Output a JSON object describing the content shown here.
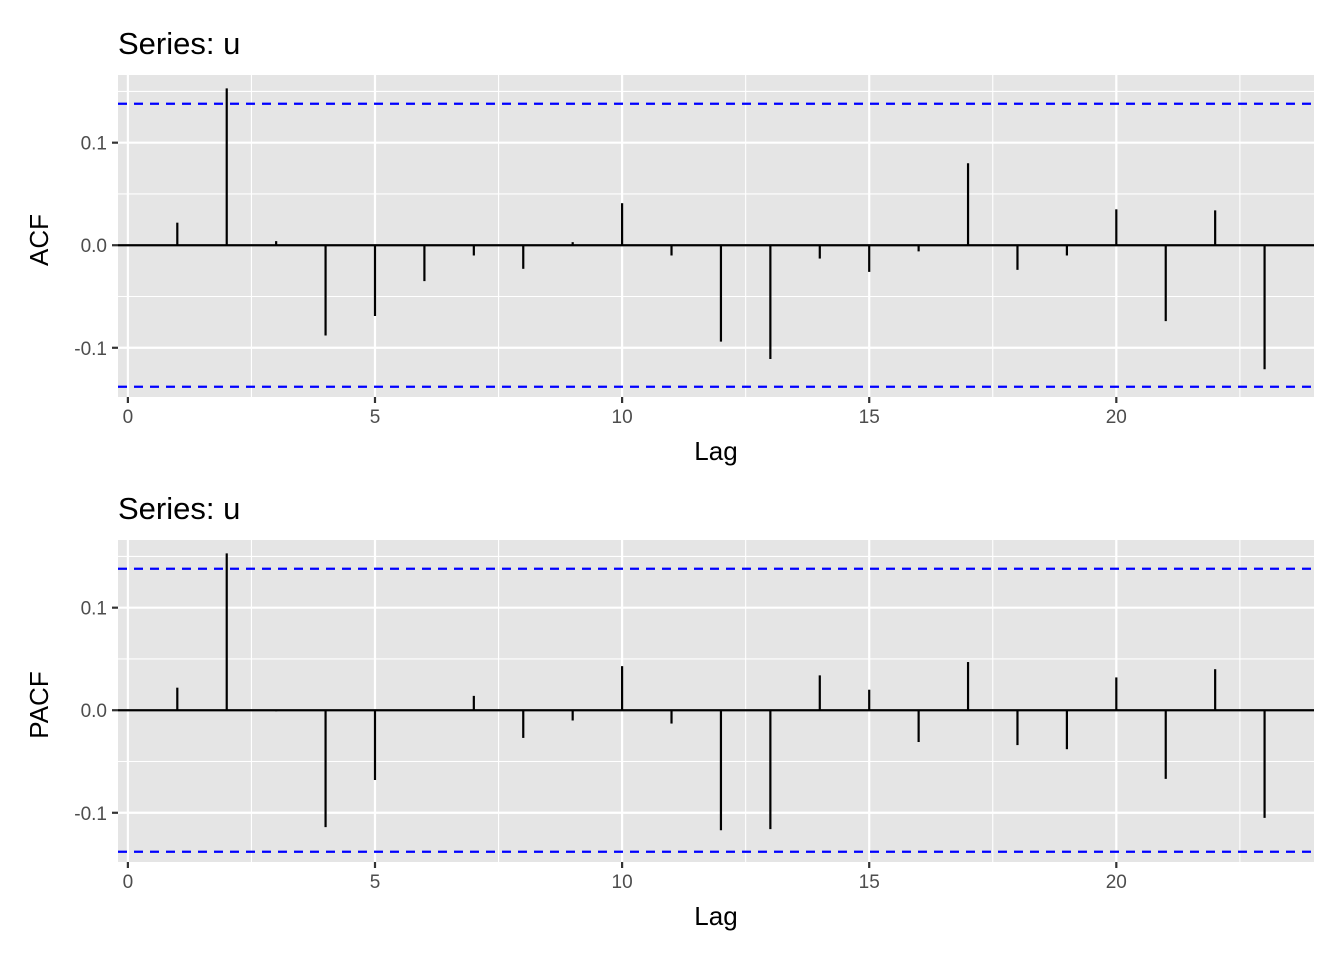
{
  "chart_data": [
    {
      "type": "bar",
      "title": "Series: u",
      "xlabel": "Lag",
      "ylabel": "ACF",
      "xlim": [
        -0.2,
        24
      ],
      "ylim": [
        -0.148,
        0.166
      ],
      "x_ticks": [
        "0",
        "5",
        "10",
        "15",
        "20"
      ],
      "y_ticks": [
        "-0.1",
        "0.0",
        "0.1"
      ],
      "confidence_bounds": [
        -0.138,
        0.138
      ],
      "grid": true,
      "colors": {
        "panel": "#e5e5e5",
        "grid": "#ffffff",
        "bars": "#000000",
        "bounds": "#0000ff"
      },
      "lags": [
        1,
        2,
        3,
        4,
        5,
        6,
        7,
        8,
        9,
        10,
        11,
        12,
        13,
        14,
        15,
        16,
        17,
        18,
        19,
        20,
        21,
        22,
        23
      ],
      "values": [
        0.022,
        0.153,
        0.004,
        -0.088,
        -0.069,
        -0.035,
        -0.01,
        -0.023,
        0.003,
        0.041,
        -0.01,
        -0.094,
        -0.111,
        -0.013,
        -0.026,
        -0.006,
        0.08,
        -0.024,
        -0.01,
        0.035,
        -0.074,
        0.034,
        -0.121
      ]
    },
    {
      "type": "bar",
      "title": "Series: u",
      "xlabel": "Lag",
      "ylabel": "PACF",
      "xlim": [
        -0.2,
        24
      ],
      "ylim": [
        -0.148,
        0.166
      ],
      "x_ticks": [
        "0",
        "5",
        "10",
        "15",
        "20"
      ],
      "y_ticks": [
        "-0.1",
        "0.0",
        "0.1"
      ],
      "confidence_bounds": [
        -0.138,
        0.138
      ],
      "grid": true,
      "colors": {
        "panel": "#e5e5e5",
        "grid": "#ffffff",
        "bars": "#000000",
        "bounds": "#0000ff"
      },
      "lags": [
        1,
        2,
        3,
        4,
        5,
        6,
        7,
        8,
        9,
        10,
        11,
        12,
        13,
        14,
        15,
        16,
        17,
        18,
        19,
        20,
        21,
        22,
        23
      ],
      "values": [
        0.022,
        0.153,
        -0.001,
        -0.114,
        -0.068,
        0.0,
        0.014,
        -0.027,
        -0.01,
        0.043,
        -0.013,
        -0.117,
        -0.116,
        0.034,
        0.02,
        -0.031,
        0.047,
        -0.034,
        -0.038,
        0.032,
        -0.067,
        0.04,
        -0.105
      ]
    }
  ]
}
